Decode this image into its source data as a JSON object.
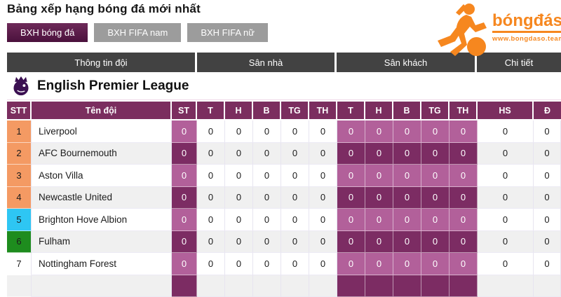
{
  "page": {
    "title": "Bảng xếp hạng bóng đá mới nhất"
  },
  "logo": {
    "brand": "bóngđásố",
    "tagline": "www.bongdaso.team",
    "accent_orange": "#f6871f"
  },
  "tabs": [
    {
      "label": "BXH bóng đá",
      "active": true
    },
    {
      "label": "BXH FIFA nam",
      "active": false
    },
    {
      "label": "BXH FIFA nữ",
      "active": false
    }
  ],
  "table": {
    "groups": [
      {
        "label": "Thông tin đội"
      },
      {
        "label": "Sân nhà"
      },
      {
        "label": "Sân khách"
      },
      {
        "label": "Chi tiết"
      }
    ],
    "league": {
      "name": "English Premier League"
    },
    "columns": [
      "STT",
      "Tên đội",
      "ST",
      "T",
      "H",
      "B",
      "TG",
      "TH",
      "T",
      "H",
      "B",
      "TG",
      "TH",
      "HS",
      "Đ"
    ],
    "colors": {
      "header_purple": "#7b2e5f",
      "group_gray": "#424242",
      "cell_purple_light": "#b2609a",
      "cell_purple_dark": "#7c2c63",
      "pos_orange": "#f49a63",
      "pos_blue": "#2ec6f3",
      "pos_green": "#1e8c1e",
      "tab_active_purple": "#5a1c47"
    },
    "rows": [
      {
        "pos": "1",
        "name": "Liverpool",
        "pos_color": "orange",
        "stats": [
          "0",
          "0",
          "0",
          "0",
          "0",
          "0",
          "0",
          "0",
          "0",
          "0",
          "0",
          "0",
          "0"
        ]
      },
      {
        "pos": "2",
        "name": "AFC Bournemouth",
        "pos_color": "orange",
        "stats": [
          "0",
          "0",
          "0",
          "0",
          "0",
          "0",
          "0",
          "0",
          "0",
          "0",
          "0",
          "0",
          "0"
        ]
      },
      {
        "pos": "3",
        "name": "Aston Villa",
        "pos_color": "orange",
        "stats": [
          "0",
          "0",
          "0",
          "0",
          "0",
          "0",
          "0",
          "0",
          "0",
          "0",
          "0",
          "0",
          "0"
        ]
      },
      {
        "pos": "4",
        "name": "Newcastle United",
        "pos_color": "orange",
        "stats": [
          "0",
          "0",
          "0",
          "0",
          "0",
          "0",
          "0",
          "0",
          "0",
          "0",
          "0",
          "0",
          "0"
        ]
      },
      {
        "pos": "5",
        "name": "Brighton Hove Albion",
        "pos_color": "blue",
        "stats": [
          "0",
          "0",
          "0",
          "0",
          "0",
          "0",
          "0",
          "0",
          "0",
          "0",
          "0",
          "0",
          "0"
        ]
      },
      {
        "pos": "6",
        "name": "Fulham",
        "pos_color": "green",
        "stats": [
          "0",
          "0",
          "0",
          "0",
          "0",
          "0",
          "0",
          "0",
          "0",
          "0",
          "0",
          "0",
          "0"
        ]
      },
      {
        "pos": "7",
        "name": "Nottingham Forest",
        "pos_color": "none",
        "stats": [
          "0",
          "0",
          "0",
          "0",
          "0",
          "0",
          "0",
          "0",
          "0",
          "0",
          "0",
          "0",
          "0"
        ]
      },
      {
        "pos": "",
        "name": "",
        "pos_color": "none",
        "stats": [
          "",
          "",
          "",
          "",
          "",
          "",
          "",
          "",
          "",
          "",
          "",
          "",
          ""
        ],
        "partial": true
      }
    ]
  }
}
